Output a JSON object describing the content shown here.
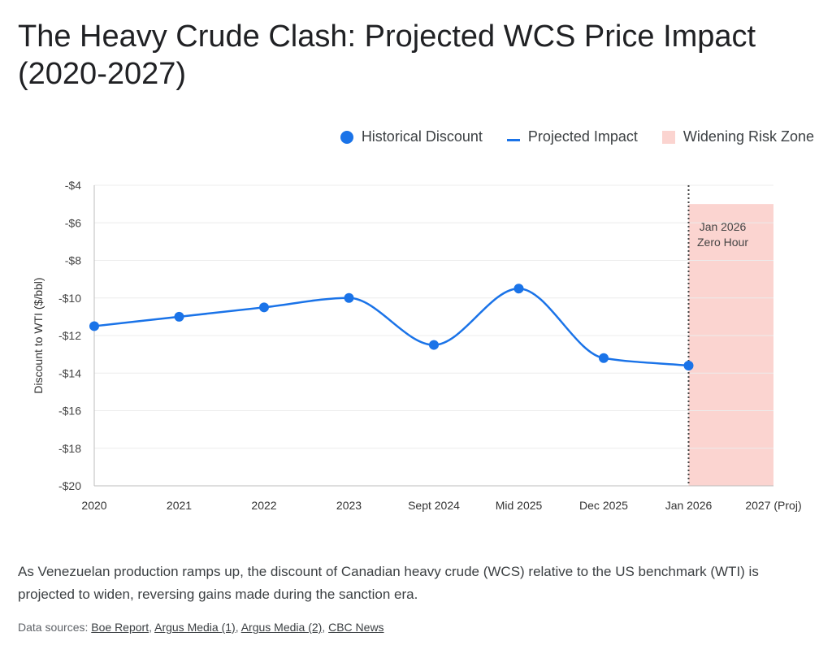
{
  "page": {
    "title": "The Heavy Crude Clash: Projected WCS Price Impact (2020-2027)",
    "description": "As Venezuelan production ramps up, the discount of Canadian heavy crude (WCS) relative to the US benchmark (WTI) is projected to widen, reversing gains made during the sanction era.",
    "sources_label": "Data sources:",
    "sources": [
      "Boe Report",
      "Argus Media (1)",
      "Argus Media (2)",
      "CBC News"
    ]
  },
  "legend": [
    {
      "label": "Historical Discount",
      "kind": "dot",
      "color": "#1a73e8"
    },
    {
      "label": "Projected Impact",
      "kind": "line",
      "color": "#1a73e8"
    },
    {
      "label": "Widening Risk Zone",
      "kind": "box",
      "color": "#fbd4d0"
    }
  ],
  "chart_data": {
    "type": "line",
    "title": "The Heavy Crude Clash: Projected WCS Price Impact (2020-2027)",
    "ylabel": "Discount to WTI ($/bbl)",
    "xlabel": "",
    "categories": [
      "2020",
      "2021",
      "2022",
      "2023",
      "Sept 2024",
      "Mid 2025",
      "Dec 2025",
      "Jan 2026",
      "2027 (Proj)"
    ],
    "series": [
      {
        "name": "Historical Discount",
        "values": [
          -11.5,
          -11,
          -10.5,
          -10,
          -12.5,
          -9.5,
          -13.2,
          -13.6,
          null
        ],
        "color": "#1a73e8"
      }
    ],
    "ylim": [
      -20,
      -4
    ],
    "yticks": [
      -4,
      -6,
      -8,
      -10,
      -12,
      -14,
      -16,
      -18,
      -20
    ],
    "ytick_labels": [
      "-$4",
      "-$6",
      "-$8",
      "-$10",
      "-$12",
      "-$14",
      "-$16",
      "-$18",
      "-$20"
    ],
    "grid": true,
    "legend_position": "top-right",
    "risk_zone": {
      "from": "Jan 2026",
      "to": "2027 (Proj)",
      "y_range": [
        -20,
        -5
      ],
      "color": "#fbd4d0"
    },
    "annotation": {
      "at": "Jan 2026",
      "lines": [
        "Jan 2026",
        "Zero Hour"
      ]
    },
    "colors": {
      "line": "#1a73e8",
      "grid": "#ececec",
      "axis": "#bdbdbd",
      "marker": "#444444"
    }
  }
}
